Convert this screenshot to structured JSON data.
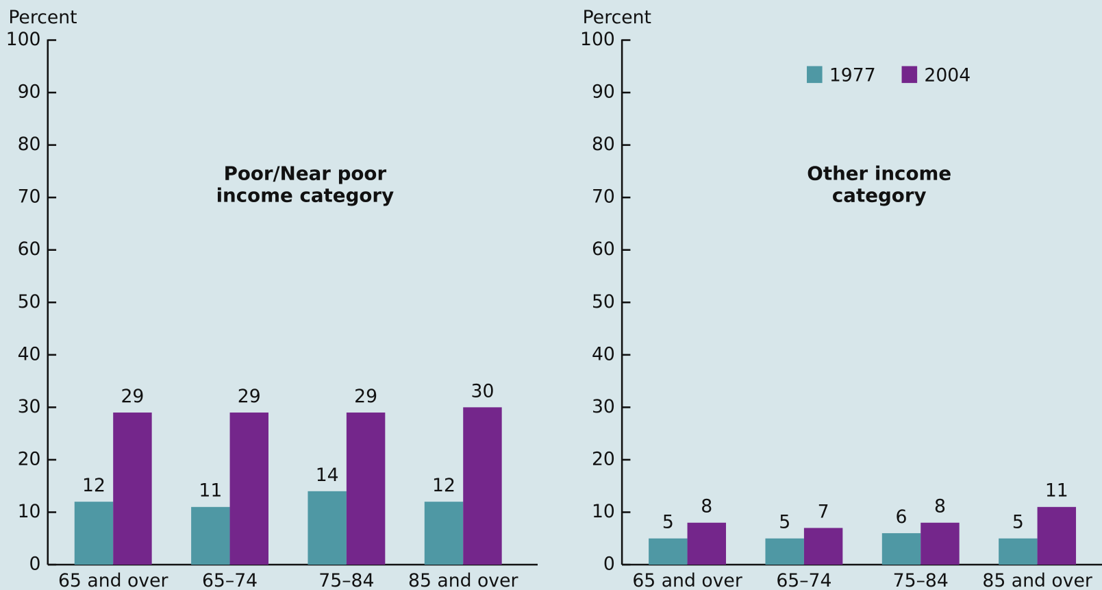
{
  "chart_data": [
    {
      "type": "bar",
      "y_label": "Percent",
      "title": [
        "Poor/Near poor",
        "income category"
      ],
      "categories": [
        "65 and over",
        "65–74",
        "75–84",
        "85 and over"
      ],
      "series": [
        {
          "name": "1977",
          "color": "#4f98a4",
          "values": [
            12,
            11,
            14,
            12
          ]
        },
        {
          "name": "2004",
          "color": "#74268b",
          "values": [
            29,
            29,
            29,
            30
          ]
        }
      ],
      "ylim": [
        0,
        100
      ],
      "yticks": [
        0,
        10,
        20,
        30,
        40,
        50,
        60,
        70,
        80,
        90,
        100
      ]
    },
    {
      "type": "bar",
      "y_label": "Percent",
      "title": [
        "Other income",
        "category"
      ],
      "categories": [
        "65 and over",
        "65–74",
        "75–84",
        "85 and over"
      ],
      "series": [
        {
          "name": "1977",
          "color": "#4f98a4",
          "values": [
            5,
            5,
            6,
            5
          ]
        },
        {
          "name": "2004",
          "color": "#74268b",
          "values": [
            8,
            7,
            8,
            11
          ]
        }
      ],
      "ylim": [
        0,
        100
      ],
      "yticks": [
        0,
        10,
        20,
        30,
        40,
        50,
        60,
        70,
        80,
        90,
        100
      ],
      "legend": "upper center"
    }
  ]
}
